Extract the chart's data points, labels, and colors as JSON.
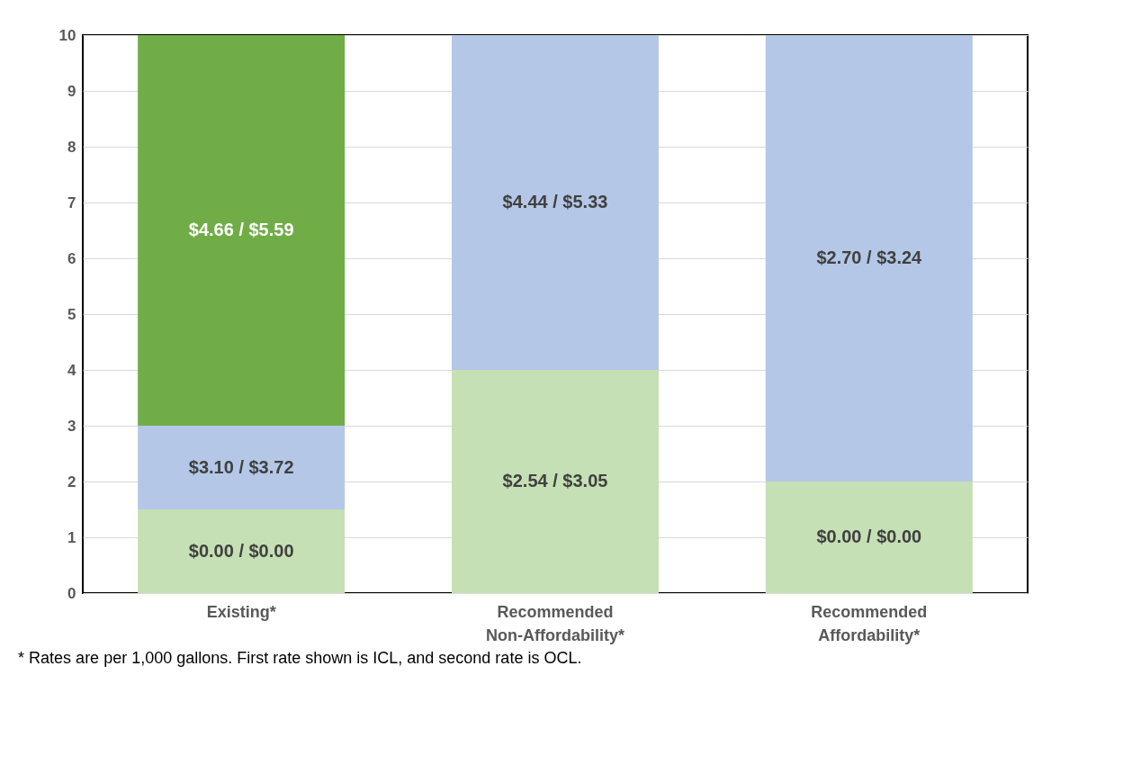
{
  "chart_data": {
    "type": "bar",
    "stacked": true,
    "categories": [
      "Existing*",
      "Recommended Non-Affordability*",
      "Recommended Affordability*"
    ],
    "series": [
      {
        "color": "#c5e0b4",
        "values": [
          1.5,
          4,
          2
        ]
      },
      {
        "color": "#b4c7e7",
        "values": [
          1.5,
          6,
          8
        ]
      },
      {
        "color": "#70ad47",
        "values": [
          7,
          null,
          null
        ]
      }
    ],
    "ylim": [
      0,
      10
    ],
    "yticks": [
      0,
      1,
      2,
      3,
      4,
      5,
      6,
      7,
      8,
      9,
      10
    ],
    "grid": "y",
    "legend": false,
    "annotations": [
      "$0.00 / $0.00",
      "$2.54 / $3.05",
      "$0.00 / $0.00",
      "$3.10 / $3.72",
      "$4.44 / $5.33",
      "$2.70 / $3.24",
      "$4.66 / $5.59",
      "* Rates are per 1,000 gallons. First rate shown is ICL, and second rate is OCL."
    ]
  }
}
